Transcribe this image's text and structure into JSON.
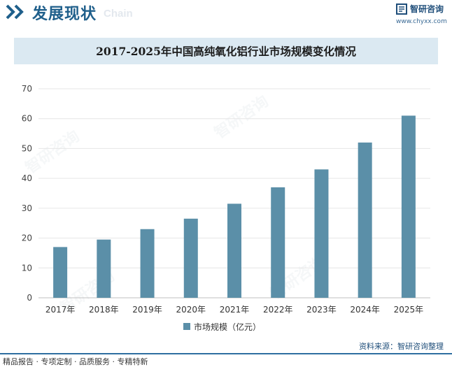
{
  "header": {
    "title": "发展现状",
    "subtitle_en": "Chain"
  },
  "brand": {
    "name": "智研咨询",
    "url": "www.chyxx.com"
  },
  "chart_title": "2017-2025年中国高纯氧化铝行业市场规模变化情况",
  "chart_data": {
    "type": "bar",
    "categories": [
      "2017年",
      "2018年",
      "2019年",
      "2020年",
      "2021年",
      "2022年",
      "2023年",
      "2024年",
      "2025年"
    ],
    "series": [
      {
        "name": "市场规模（亿元）",
        "values": [
          17,
          19.5,
          23,
          26.5,
          31.5,
          37,
          43,
          52,
          61
        ]
      }
    ],
    "ylim": [
      0,
      70
    ],
    "yticks": [
      0,
      10,
      20,
      30,
      40,
      50,
      60,
      70
    ],
    "grid": true,
    "legend": "bottom"
  },
  "source": "资料来源：智研咨询整理",
  "footer": "精品报告 · 专项定制 · 品质服务 · 专精特新",
  "watermark": "智研咨询",
  "colors": {
    "bar": "#5b8fa8",
    "accent": "#1f5f8b",
    "title_bg": "#dbe9f2"
  }
}
